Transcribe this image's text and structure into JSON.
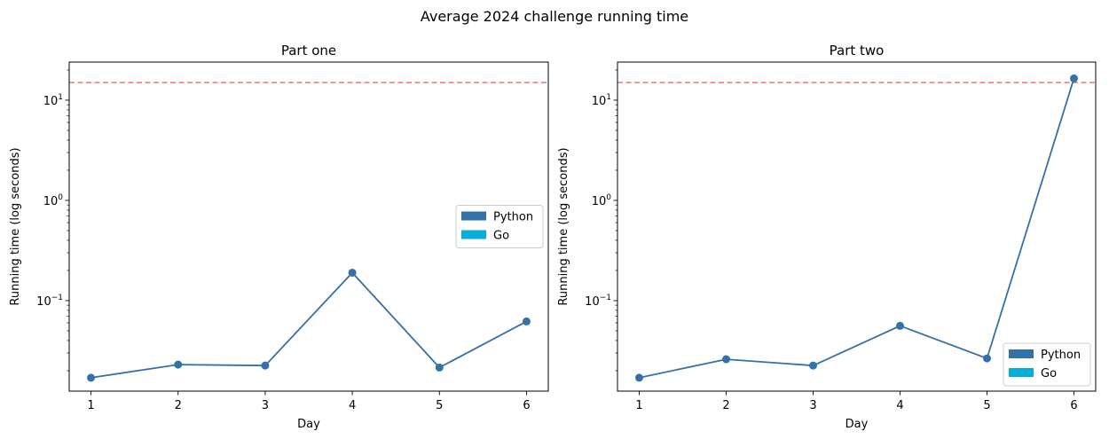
{
  "suptitle": "Average 2024 challenge running time",
  "colors": {
    "python": "#3471a8",
    "go": "#04aed8",
    "threshold": "#f27c82"
  },
  "chart_data": [
    {
      "type": "line",
      "title": "Part one",
      "xlabel": "Day",
      "ylabel": "Running time (log seconds)",
      "yscale": "log",
      "ylim": [
        0.0125,
        24
      ],
      "xlim": [
        0.75,
        6.25
      ],
      "x": [
        1,
        2,
        3,
        4,
        5,
        6
      ],
      "x_tick_labels": [
        "1",
        "2",
        "3",
        "4",
        "5",
        "6"
      ],
      "y_ticks": [
        {
          "value": 0.1,
          "base": "10",
          "exp": "−1"
        },
        {
          "value": 1,
          "base": "10",
          "exp": "0"
        },
        {
          "value": 10,
          "base": "10",
          "exp": "1"
        }
      ],
      "series": [
        {
          "name": "Python",
          "color_key": "python",
          "values": [
            0.017,
            0.023,
            0.0225,
            0.19,
            0.0215,
            0.062
          ]
        }
      ],
      "threshold": {
        "value": 15,
        "style": "dashed",
        "color_key": "threshold"
      },
      "legend": {
        "placement": "center-right",
        "entries": [
          {
            "label": "Python",
            "color_key": "python"
          },
          {
            "label": "Go",
            "color_key": "go"
          }
        ]
      }
    },
    {
      "type": "line",
      "title": "Part two",
      "xlabel": "Day",
      "ylabel": "Running time (log seconds)",
      "yscale": "log",
      "ylim": [
        0.0125,
        24
      ],
      "xlim": [
        0.75,
        6.25
      ],
      "x": [
        1,
        2,
        3,
        4,
        5,
        6
      ],
      "x_tick_labels": [
        "1",
        "2",
        "3",
        "4",
        "5",
        "6"
      ],
      "y_ticks": [
        {
          "value": 0.1,
          "base": "10",
          "exp": "−1"
        },
        {
          "value": 1,
          "base": "10",
          "exp": "0"
        },
        {
          "value": 10,
          "base": "10",
          "exp": "1"
        }
      ],
      "series": [
        {
          "name": "Python",
          "color_key": "python",
          "values": [
            0.017,
            0.026,
            0.0225,
            0.056,
            0.0265,
            16.5
          ]
        }
      ],
      "threshold": {
        "value": 15,
        "style": "dashed",
        "color_key": "threshold"
      },
      "legend": {
        "placement": "lower-right",
        "entries": [
          {
            "label": "Python",
            "color_key": "python"
          },
          {
            "label": "Go",
            "color_key": "go"
          }
        ]
      }
    }
  ]
}
